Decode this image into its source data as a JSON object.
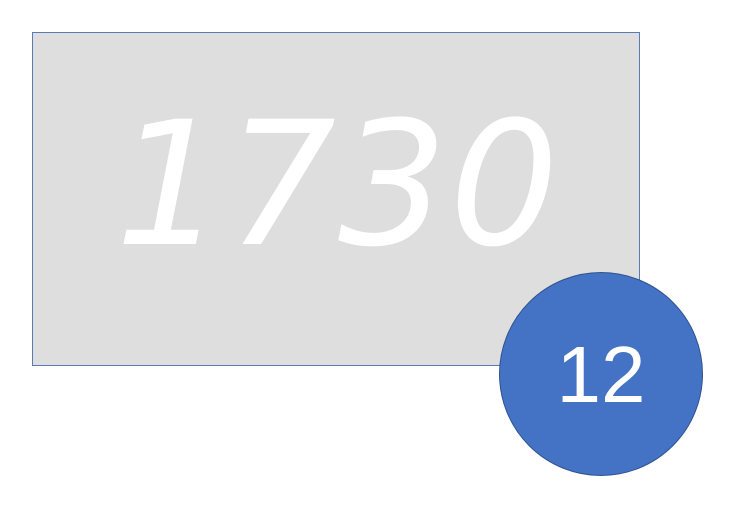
{
  "card": {
    "year": "1730",
    "background_color": "#dedede",
    "text_color": "#ffffff"
  },
  "badge": {
    "number": "12",
    "background_color": "#4472c4",
    "text_color": "#ffffff"
  }
}
